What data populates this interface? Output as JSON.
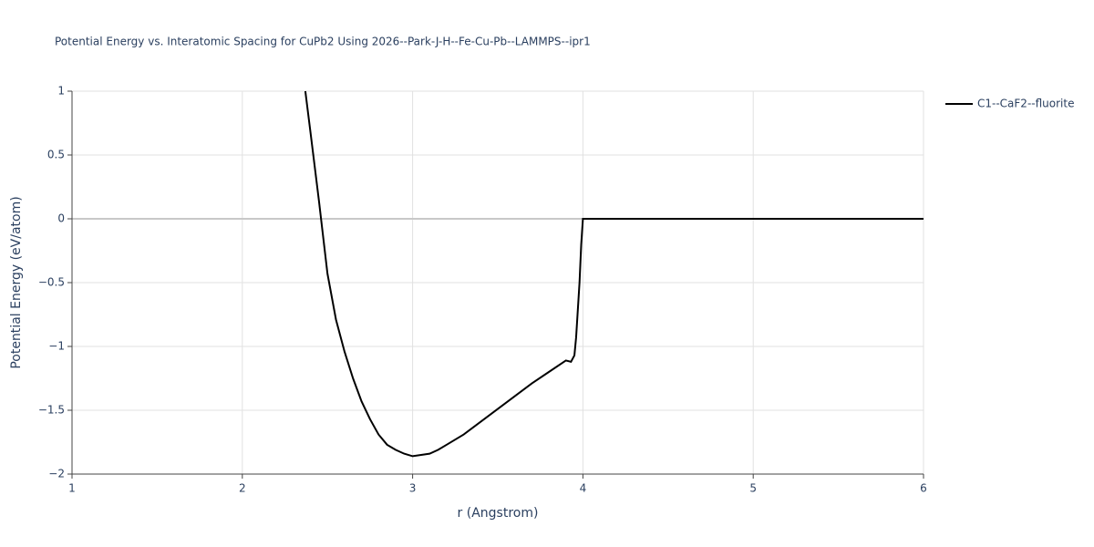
{
  "chart_data": {
    "type": "line",
    "title": "Potential Energy vs. Interatomic Spacing for CuPb2 Using 2026--Park-J-H--Fe-Cu-Pb--LAMMPS--ipr1",
    "x_label": "r (Angstrom)",
    "y_label": "Potential Energy (eV/atom)",
    "x": [
      2.37,
      2.4,
      2.45,
      2.5,
      2.55,
      2.6,
      2.65,
      2.7,
      2.75,
      2.8,
      2.85,
      2.9,
      2.95,
      3.0,
      3.05,
      3.1,
      3.15,
      3.2,
      3.3,
      3.4,
      3.5,
      3.6,
      3.7,
      3.8,
      3.9,
      3.93,
      3.95,
      3.96,
      3.98,
      3.99,
      4.0,
      4.5,
      5.0,
      5.5,
      6.0
    ],
    "series": [
      {
        "name": "C1--CaF2--fluorite",
        "color": "#000000",
        "values": [
          1,
          0.68,
          0.14,
          -0.43,
          -0.79,
          -1.04,
          -1.25,
          -1.43,
          -1.57,
          -1.69,
          -1.77,
          -1.81,
          -1.84,
          -1.86,
          -1.85,
          -1.84,
          -1.81,
          -1.77,
          -1.69,
          -1.59,
          -1.49,
          -1.39,
          -1.29,
          -1.2,
          -1.11,
          -1.12,
          -1.07,
          -0.93,
          -0.5,
          -0.2,
          0,
          0,
          0,
          0,
          0
        ]
      }
    ],
    "xlim": [
      1,
      6
    ],
    "xticks": [
      1,
      2,
      3,
      4,
      5,
      6
    ],
    "ylim": [
      -2,
      1
    ],
    "yticks": [
      {
        "value": -2,
        "label": "−2"
      },
      {
        "value": -1.5,
        "label": "−1.5"
      },
      {
        "value": -1,
        "label": "−1"
      },
      {
        "value": -0.5,
        "label": "−0.5"
      },
      0,
      0.5,
      1
    ],
    "grid": true,
    "legend": "outside-right"
  }
}
